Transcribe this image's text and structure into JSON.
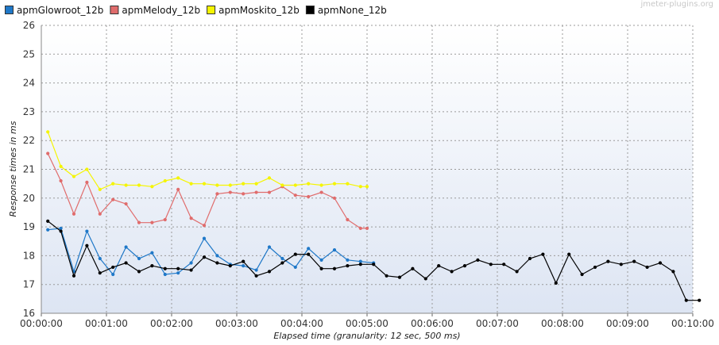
{
  "chart_data": {
    "type": "line",
    "watermark": "jmeter-plugins.org",
    "xlabel": "Elapsed time (granularity: 12 sec, 500 ms)",
    "ylabel": "Response times in ms",
    "xlim": [
      0,
      600
    ],
    "ylim": [
      16,
      26
    ],
    "yticks": [
      "16",
      "17",
      "18",
      "19",
      "20",
      "21",
      "22",
      "23",
      "24",
      "25",
      "26"
    ],
    "xticks": [
      "00:00:00",
      "00:01:00",
      "00:02:00",
      "00:03:00",
      "00:04:00",
      "00:05:00",
      "00:06:00",
      "00:07:00",
      "00:08:00",
      "00:09:00",
      "00:10:00"
    ],
    "grid": true,
    "legend_position": "top",
    "series": [
      {
        "name": "apmGlowroot_12b",
        "color": "#1f78c8",
        "x": [
          6,
          18,
          30,
          42,
          54,
          66,
          78,
          90,
          102,
          114,
          126,
          138,
          150,
          162,
          174,
          186,
          198,
          210,
          222,
          234,
          246,
          258,
          270,
          282,
          294,
          306
        ],
        "y": [
          18.9,
          18.95,
          17.45,
          18.85,
          17.9,
          17.35,
          18.3,
          17.9,
          18.1,
          17.35,
          17.4,
          17.75,
          18.6,
          18.0,
          17.7,
          17.65,
          17.5,
          18.3,
          17.9,
          17.6,
          18.25,
          17.85,
          18.2,
          17.85,
          17.8,
          17.75
        ]
      },
      {
        "name": "apmMelody_12b",
        "color": "#e06c6c",
        "x": [
          6,
          18,
          30,
          42,
          54,
          66,
          78,
          90,
          102,
          114,
          126,
          138,
          150,
          162,
          174,
          186,
          198,
          210,
          222,
          234,
          246,
          258,
          270,
          282,
          294,
          300
        ],
        "y": [
          21.55,
          20.6,
          19.45,
          20.55,
          19.45,
          19.95,
          19.8,
          19.15,
          19.15,
          19.25,
          20.3,
          19.3,
          19.05,
          20.15,
          20.2,
          20.15,
          20.2,
          20.2,
          20.4,
          20.1,
          20.05,
          20.2,
          20.0,
          19.25,
          18.95,
          18.95
        ]
      },
      {
        "name": "apmMoskito_12b",
        "color": "#f5f500",
        "x": [
          6,
          18,
          30,
          42,
          54,
          66,
          78,
          90,
          102,
          114,
          126,
          138,
          150,
          162,
          174,
          186,
          198,
          210,
          222,
          234,
          246,
          258,
          270,
          282,
          294,
          300
        ],
        "y": [
          22.3,
          21.1,
          20.75,
          21.0,
          20.3,
          20.5,
          20.45,
          20.45,
          20.4,
          20.6,
          20.7,
          20.5,
          20.5,
          20.45,
          20.45,
          20.5,
          20.5,
          20.7,
          20.45,
          20.45,
          20.5,
          20.45,
          20.5,
          20.5,
          20.4,
          20.4
        ]
      },
      {
        "name": "apmNone_12b",
        "color": "#000000",
        "x": [
          6,
          18,
          30,
          42,
          54,
          66,
          78,
          90,
          102,
          114,
          126,
          138,
          150,
          162,
          174,
          186,
          198,
          210,
          222,
          234,
          246,
          258,
          270,
          282,
          294,
          306,
          318,
          330,
          342,
          354,
          366,
          378,
          390,
          402,
          414,
          426,
          438,
          450,
          462,
          474,
          486,
          498,
          510,
          522,
          534,
          546,
          558,
          570,
          582,
          594,
          606
        ],
        "y": [
          19.2,
          18.85,
          17.3,
          18.35,
          17.4,
          17.6,
          17.75,
          17.45,
          17.65,
          17.55,
          17.55,
          17.5,
          17.95,
          17.75,
          17.65,
          17.8,
          17.3,
          17.45,
          17.75,
          18.05,
          18.05,
          17.55,
          17.55,
          17.65,
          17.7,
          17.7,
          17.3,
          17.25,
          17.55,
          17.2,
          17.65,
          17.45,
          17.65,
          17.85,
          17.7,
          17.7,
          17.45,
          17.9,
          18.05,
          17.05,
          18.05,
          17.35,
          17.6,
          17.8,
          17.7,
          17.8,
          17.6,
          17.75,
          17.45,
          16.45,
          16.45
        ]
      }
    ]
  }
}
